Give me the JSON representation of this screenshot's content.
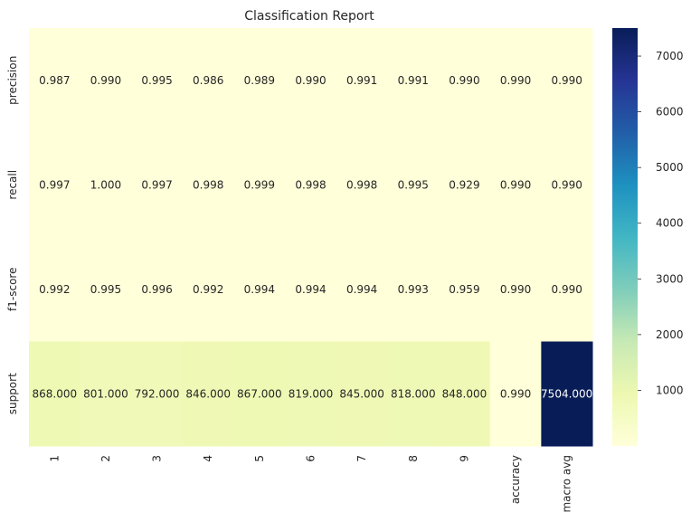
{
  "chart_data": {
    "type": "heatmap",
    "title": "Classification Report",
    "columns": [
      "1",
      "2",
      "3",
      "4",
      "5",
      "6",
      "7",
      "8",
      "9",
      "accuracy",
      "macro avg"
    ],
    "rows": [
      "precision",
      "recall",
      "f1-score",
      "support"
    ],
    "values": [
      [
        0.987,
        0.99,
        0.995,
        0.986,
        0.989,
        0.99,
        0.991,
        0.991,
        0.99,
        0.99,
        0.99
      ],
      [
        0.997,
        1.0,
        0.997,
        0.998,
        0.999,
        0.998,
        0.998,
        0.995,
        0.929,
        0.99,
        0.99
      ],
      [
        0.992,
        0.995,
        0.996,
        0.992,
        0.994,
        0.994,
        0.994,
        0.993,
        0.959,
        0.99,
        0.99
      ],
      [
        868.0,
        801.0,
        792.0,
        846.0,
        867.0,
        819.0,
        845.0,
        818.0,
        848.0,
        0.99,
        7504.0
      ]
    ],
    "value_labels": [
      [
        "0.987",
        "0.990",
        "0.995",
        "0.986",
        "0.989",
        "0.990",
        "0.991",
        "0.991",
        "0.990",
        "0.990",
        "0.990"
      ],
      [
        "0.997",
        "1.000",
        "0.997",
        "0.998",
        "0.999",
        "0.998",
        "0.998",
        "0.995",
        "0.929",
        "0.990",
        "0.990"
      ],
      [
        "0.992",
        "0.995",
        "0.996",
        "0.992",
        "0.994",
        "0.994",
        "0.994",
        "0.993",
        "0.959",
        "0.990",
        "0.990"
      ],
      [
        "868.000",
        "801.000",
        "792.000",
        "846.000",
        "867.000",
        "819.000",
        "845.000",
        "818.000",
        "848.000",
        "0.990",
        "7504.000"
      ]
    ],
    "colormap": "YlGnBu",
    "color_range": [
      0,
      7504
    ],
    "colorbar": {
      "ticks": [
        1000,
        2000,
        3000,
        4000,
        5000,
        6000,
        7000
      ],
      "tick_labels": [
        "1000",
        "2000",
        "3000",
        "4000",
        "5000",
        "6000",
        "7000"
      ]
    },
    "grid": false,
    "legend": "colorbar-right"
  }
}
